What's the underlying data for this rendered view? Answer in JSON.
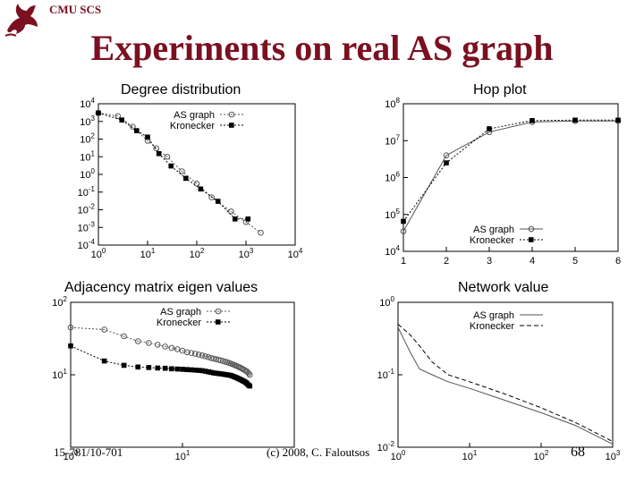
{
  "slide": {
    "header_label": "CMU SCS",
    "title": "Experiments on real AS graph",
    "footer_left": "15-781/10-701",
    "footer_center": "(c) 2008, C. Faloutsos",
    "page_number": "68"
  },
  "colors": {
    "title": "#7a1020",
    "ink": "#000000"
  },
  "chart_data": [
    {
      "id": "degree",
      "type": "scatter",
      "title": "Degree distribution",
      "xscale": "log",
      "yscale": "log",
      "xlim": [
        1,
        10000
      ],
      "ylim": [
        0.0001,
        10000
      ],
      "xticks": [
        {
          "v": 1,
          "b": "10",
          "e": "0"
        },
        {
          "v": 10,
          "b": "10",
          "e": "1"
        },
        {
          "v": 100,
          "b": "10",
          "e": "2"
        },
        {
          "v": 1000,
          "b": "10",
          "e": "3"
        },
        {
          "v": 10000,
          "b": "10",
          "e": "4"
        }
      ],
      "yticks": [
        {
          "v": 10000,
          "b": "10",
          "e": "4"
        },
        {
          "v": 1000,
          "b": "10",
          "e": "3"
        },
        {
          "v": 100,
          "b": "10",
          "e": "2"
        },
        {
          "v": 10,
          "b": "10",
          "e": "1"
        },
        {
          "v": 1,
          "b": "10",
          "e": "0"
        },
        {
          "v": 0.1,
          "b": "10",
          "e": "-1"
        },
        {
          "v": 0.01,
          "b": "10",
          "e": "-2"
        },
        {
          "v": 0.001,
          "b": "10",
          "e": "-3"
        },
        {
          "v": 0.0001,
          "b": "10",
          "e": "-4"
        }
      ],
      "legend": "top-right",
      "series": [
        {
          "name": "AS graph",
          "marker": "circle",
          "line": "dotted",
          "x": [
            1,
            2.5,
            5,
            10,
            15,
            25,
            50,
            100,
            200,
            500,
            1000,
            2000
          ],
          "y": [
            3000,
            2000,
            500,
            80,
            30,
            10,
            1.5,
            0.3,
            0.05,
            0.008,
            0.002,
            0.0005
          ]
        },
        {
          "name": "Kronecker",
          "marker": "square",
          "line": "dotted",
          "x": [
            1,
            3,
            6,
            10,
            17,
            30,
            60,
            120,
            270,
            600,
            1100
          ],
          "y": [
            3000,
            1200,
            300,
            130,
            15,
            3,
            0.6,
            0.15,
            0.03,
            0.003,
            0.003
          ]
        }
      ]
    },
    {
      "id": "hop",
      "type": "line",
      "title": "Hop plot",
      "xscale": "linear",
      "yscale": "log",
      "xlim": [
        1,
        6
      ],
      "ylim": [
        10000,
        100000000
      ],
      "xticks": [
        {
          "v": 1,
          "t": "1"
        },
        {
          "v": 2,
          "t": "2"
        },
        {
          "v": 3,
          "t": "3"
        },
        {
          "v": 4,
          "t": "4"
        },
        {
          "v": 5,
          "t": "5"
        },
        {
          "v": 6,
          "t": "6"
        }
      ],
      "yticks": [
        {
          "v": 100000000,
          "b": "10",
          "e": "8"
        },
        {
          "v": 10000000,
          "b": "10",
          "e": "7"
        },
        {
          "v": 1000000,
          "b": "10",
          "e": "6"
        },
        {
          "v": 100000,
          "b": "10",
          "e": "5"
        },
        {
          "v": 10000,
          "b": "10",
          "e": "4"
        }
      ],
      "legend": "bottom-right",
      "series": [
        {
          "name": "AS graph",
          "marker": "circle",
          "line": "solid",
          "x": [
            1,
            2,
            3,
            4,
            5,
            6
          ],
          "y": [
            35000,
            4000000,
            17000000,
            32000000,
            34000000,
            34000000
          ]
        },
        {
          "name": "Kronecker",
          "marker": "square",
          "line": "dotted",
          "x": [
            1,
            2,
            3,
            4,
            5,
            6
          ],
          "y": [
            65000,
            2500000,
            21000000,
            35000000,
            36000000,
            36000000
          ]
        }
      ]
    },
    {
      "id": "eigen",
      "type": "scatter",
      "title": "Adjacency matrix eigen values",
      "xscale": "log",
      "yscale": "log",
      "xlim": [
        1,
        100
      ],
      "ylim": [
        1,
        100
      ],
      "xticks": [
        {
          "v": 1,
          "b": "10",
          "e": "0"
        },
        {
          "v": 10,
          "b": "10",
          "e": "1"
        }
      ],
      "yticks": [
        {
          "v": 100,
          "b": "10",
          "e": "2"
        },
        {
          "v": 10,
          "b": "10",
          "e": "1"
        }
      ],
      "legend": "top-right",
      "series": [
        {
          "name": "AS graph",
          "marker": "circle",
          "line": "dotted",
          "x": [
            1,
            2,
            3,
            4,
            5,
            6,
            7,
            8,
            9,
            10,
            11,
            12,
            13,
            14,
            15,
            16,
            17,
            18,
            19,
            20,
            21,
            22,
            23,
            24,
            25,
            26,
            27,
            28,
            29,
            30,
            31,
            32,
            33,
            34,
            35,
            36,
            37,
            38,
            39,
            40
          ],
          "y": [
            45,
            42,
            34,
            29,
            27.5,
            26,
            24.5,
            23.5,
            22.5,
            21.5,
            20.5,
            20,
            19.5,
            19,
            18.5,
            18,
            17.5,
            17,
            16.7,
            16.4,
            16.1,
            15.8,
            15.5,
            15.2,
            14.9,
            14.6,
            14.3,
            14,
            13.7,
            13.4,
            13.1,
            12.8,
            12.5,
            12.2,
            11.9,
            11.6,
            11.3,
            11,
            10.5,
            10
          ]
        },
        {
          "name": "Kronecker",
          "marker": "square",
          "line": "dotted",
          "x": [
            1,
            2,
            3,
            4,
            5,
            6,
            7,
            8,
            9,
            10,
            11,
            12,
            13,
            14,
            15,
            16,
            17,
            18,
            19,
            20,
            21,
            22,
            23,
            24,
            25,
            26,
            27,
            28,
            29,
            30,
            31,
            32,
            33,
            34,
            35,
            36,
            37,
            38,
            39,
            40
          ],
          "y": [
            25,
            15.5,
            13.5,
            12.8,
            12.6,
            12.4,
            12.3,
            12.1,
            12,
            11.9,
            11.8,
            11.7,
            11.6,
            11.5,
            11.4,
            11.2,
            11,
            10.8,
            10.6,
            10.5,
            10.4,
            10.3,
            10.2,
            10.1,
            10,
            9.9,
            9.8,
            9.6,
            9.4,
            9.2,
            9,
            8.8,
            8.6,
            8.4,
            8.2,
            8,
            7.8,
            7.5,
            7.2,
            7
          ]
        }
      ]
    },
    {
      "id": "network",
      "type": "line",
      "title": "Network value",
      "xscale": "log",
      "yscale": "log",
      "xlim": [
        1,
        1000
      ],
      "ylim": [
        0.01,
        1
      ],
      "xticks": [
        {
          "v": 1,
          "b": "10",
          "e": "0"
        },
        {
          "v": 10,
          "b": "10",
          "e": "1"
        },
        {
          "v": 100,
          "b": "10",
          "e": "2"
        },
        {
          "v": 1000,
          "b": "10",
          "e": "3"
        }
      ],
      "yticks": [
        {
          "v": 1,
          "b": "10",
          "e": "0"
        },
        {
          "v": 0.1,
          "b": "10",
          "e": "-1"
        },
        {
          "v": 0.01,
          "b": "10",
          "e": "-2"
        }
      ],
      "legend": "top-right",
      "series": [
        {
          "name": "AS graph",
          "marker": "none",
          "line": "solid",
          "x": [
            1,
            1.5,
            2,
            3,
            5,
            10,
            30,
            100,
            300,
            1000
          ],
          "y": [
            0.45,
            0.2,
            0.12,
            0.1,
            0.08,
            0.065,
            0.045,
            0.03,
            0.02,
            0.011
          ]
        },
        {
          "name": "Kronecker",
          "marker": "none",
          "line": "dashed",
          "x": [
            1,
            1.5,
            2,
            3,
            5,
            10,
            30,
            100,
            300,
            1000
          ],
          "y": [
            0.5,
            0.35,
            0.25,
            0.15,
            0.1,
            0.08,
            0.055,
            0.035,
            0.022,
            0.012
          ]
        }
      ]
    }
  ]
}
